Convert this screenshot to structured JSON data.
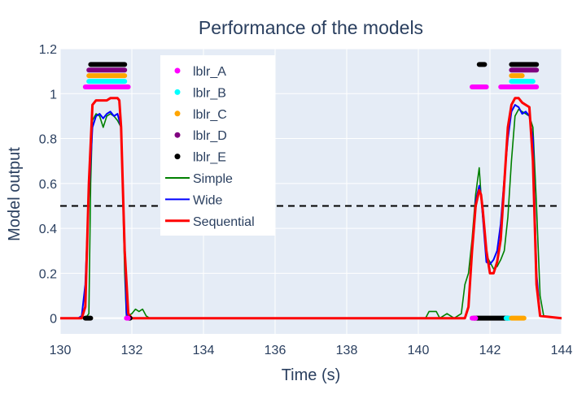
{
  "chart_data": {
    "type": "line",
    "title": "Performance of the models",
    "xlabel": "Time (s)",
    "ylabel": "Model output",
    "xlim": [
      130,
      144
    ],
    "ylim": [
      -0.07,
      1.2
    ],
    "xticks": [
      130,
      132,
      134,
      136,
      138,
      140,
      142,
      144
    ],
    "yticks": [
      0,
      0.2,
      0.4,
      0.6,
      0.8,
      1,
      1.2
    ],
    "xtick_labels": [
      "130",
      "132",
      "134",
      "136",
      "138",
      "140",
      "142",
      "144"
    ],
    "ytick_labels": [
      "0",
      "0.2",
      "0.4",
      "0.6",
      "0.8",
      "1",
      "1.2"
    ],
    "threshold": 0.5,
    "grid": true,
    "legend_position": "top-left",
    "label_series": [
      {
        "name": "lblr_A",
        "color": "#ff00ff",
        "y": 1.03,
        "segments": [
          [
            130.7,
            131.9
          ],
          [
            141.5,
            141.9
          ],
          [
            142.3,
            143.3
          ]
        ]
      },
      {
        "name": "lblr_B",
        "color": "#00ffff",
        "y": 1.055,
        "segments": [
          [
            130.8,
            131.8
          ],
          [
            142.6,
            143.2
          ]
        ]
      },
      {
        "name": "lblr_C",
        "color": "#ffa500",
        "y": 1.08,
        "segments": [
          [
            130.8,
            131.8
          ],
          [
            142.6,
            142.9
          ]
        ]
      },
      {
        "name": "lblr_D",
        "color": "#800080",
        "y": 1.105,
        "segments": [
          [
            130.8,
            131.8
          ],
          [
            142.6,
            143.3
          ]
        ]
      },
      {
        "name": "lblr_E",
        "color": "#000000",
        "y": 1.13,
        "segments": [
          [
            130.85,
            131.8
          ],
          [
            141.7,
            141.85
          ],
          [
            142.6,
            143.3
          ]
        ]
      }
    ],
    "baseline_markers": [
      {
        "color": "#000000",
        "segments": [
          [
            130.7,
            130.85
          ],
          [
            131.9,
            131.95
          ],
          [
            141.55,
            142.5
          ]
        ]
      },
      {
        "color": "#ff00ff",
        "segments": [
          [
            131.85,
            131.9
          ],
          [
            141.5,
            141.6
          ]
        ]
      },
      {
        "color": "#00ffff",
        "segments": [
          [
            142.45,
            142.55
          ]
        ]
      },
      {
        "color": "#ffa500",
        "segments": [
          [
            142.6,
            142.95
          ]
        ]
      }
    ],
    "series": [
      {
        "name": "Simple",
        "color": "#008000",
        "x": [
          130,
          130.5,
          130.7,
          130.8,
          130.85,
          130.9,
          131.0,
          131.1,
          131.2,
          131.3,
          131.4,
          131.5,
          131.6,
          131.7,
          131.8,
          131.85,
          131.9,
          132.0,
          132.1,
          132.2,
          132.3,
          132.4,
          132.5,
          133,
          136,
          140.2,
          140.3,
          140.5,
          140.6,
          140.8,
          141.0,
          141.2,
          141.3,
          141.4,
          141.5,
          141.6,
          141.7,
          141.75,
          141.8,
          141.9,
          142.0,
          142.1,
          142.2,
          142.3,
          142.4,
          142.5,
          142.6,
          142.7,
          142.8,
          142.9,
          143.0,
          143.1,
          143.2,
          143.3,
          143.4,
          143.5,
          144
        ],
        "y": [
          0,
          0,
          0,
          0.02,
          0.6,
          0.88,
          0.91,
          0.9,
          0.85,
          0.9,
          0.91,
          0.9,
          0.88,
          0.85,
          0.2,
          0.0,
          0.01,
          0.02,
          0.04,
          0.03,
          0.04,
          0.01,
          0,
          0,
          0,
          0,
          0.03,
          0.03,
          0.0,
          0.02,
          0.0,
          0.02,
          0.15,
          0.2,
          0.35,
          0.55,
          0.67,
          0.55,
          0.45,
          0.28,
          0.25,
          0.22,
          0.23,
          0.26,
          0.3,
          0.45,
          0.7,
          0.9,
          0.93,
          0.92,
          0.91,
          0.9,
          0.85,
          0.5,
          0.1,
          0.01,
          0
        ]
      },
      {
        "name": "Wide",
        "color": "#0000ff",
        "x": [
          130,
          130.5,
          130.6,
          130.7,
          130.8,
          130.9,
          131.0,
          131.1,
          131.2,
          131.3,
          131.4,
          131.5,
          131.6,
          131.7,
          131.8,
          131.85,
          131.9,
          132.0,
          133,
          136,
          141.3,
          141.4,
          141.5,
          141.6,
          141.7,
          141.75,
          141.8,
          141.9,
          142.0,
          142.1,
          142.2,
          142.3,
          142.4,
          142.5,
          142.6,
          142.7,
          142.8,
          142.9,
          143.0,
          143.1,
          143.2,
          143.3,
          143.4,
          144
        ],
        "y": [
          0,
          0,
          0.01,
          0.15,
          0.55,
          0.85,
          0.9,
          0.91,
          0.89,
          0.91,
          0.92,
          0.9,
          0.91,
          0.85,
          0.3,
          0.02,
          0.0,
          0.0,
          0,
          0,
          0,
          0.05,
          0.3,
          0.52,
          0.59,
          0.55,
          0.45,
          0.25,
          0.24,
          0.26,
          0.3,
          0.42,
          0.62,
          0.8,
          0.92,
          0.95,
          0.94,
          0.91,
          0.92,
          0.9,
          0.8,
          0.2,
          0.01,
          0
        ]
      },
      {
        "name": "Sequential",
        "color": "#ff0000",
        "x": [
          130,
          130.6,
          130.7,
          130.8,
          130.9,
          131.0,
          131.1,
          131.2,
          131.3,
          131.4,
          131.5,
          131.6,
          131.65,
          131.7,
          131.8,
          131.9,
          132.0,
          133,
          136,
          141.3,
          141.4,
          141.5,
          141.6,
          141.7,
          141.75,
          141.8,
          141.9,
          142.0,
          142.1,
          142.2,
          142.3,
          142.4,
          142.5,
          142.6,
          142.7,
          142.8,
          142.9,
          143.0,
          143.1,
          143.2,
          143.3,
          143.4,
          144
        ],
        "y": [
          0,
          0,
          0.05,
          0.6,
          0.95,
          0.97,
          0.97,
          0.97,
          0.97,
          0.98,
          0.98,
          0.98,
          0.97,
          0.85,
          0.3,
          0.02,
          0.0,
          0,
          0,
          0,
          0.05,
          0.3,
          0.5,
          0.57,
          0.55,
          0.48,
          0.3,
          0.2,
          0.2,
          0.25,
          0.35,
          0.6,
          0.85,
          0.95,
          0.98,
          0.98,
          0.96,
          0.95,
          0.94,
          0.7,
          0.15,
          0.01,
          0
        ]
      }
    ],
    "legend": [
      {
        "name": "lblr_A",
        "kind": "marker",
        "color": "#ff00ff"
      },
      {
        "name": "lblr_B",
        "kind": "marker",
        "color": "#00ffff"
      },
      {
        "name": "lblr_C",
        "kind": "marker",
        "color": "#ffa500"
      },
      {
        "name": "lblr_D",
        "kind": "marker",
        "color": "#800080"
      },
      {
        "name": "lblr_E",
        "kind": "marker",
        "color": "#000000"
      },
      {
        "name": "Simple",
        "kind": "line",
        "color": "#008000"
      },
      {
        "name": "Wide",
        "kind": "line",
        "color": "#0000ff"
      },
      {
        "name": "Sequential",
        "kind": "line",
        "color": "#ff0000"
      }
    ]
  },
  "colors": {
    "plot_background": "#e5ecf6",
    "grid": "#ffffff",
    "text": "#2a3f5f"
  }
}
